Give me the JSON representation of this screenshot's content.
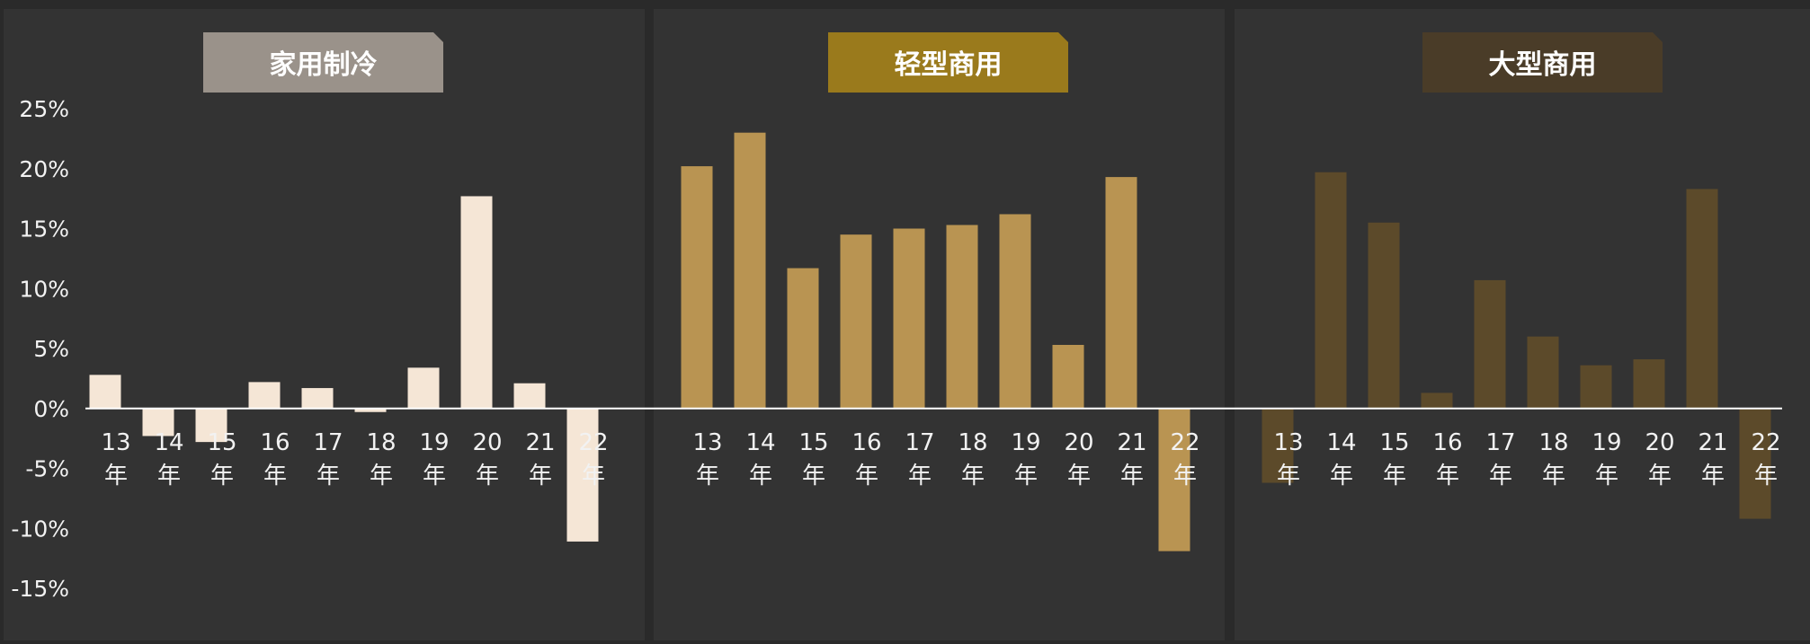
{
  "colors": {
    "background": "#2a2a2a",
    "panel": "#333333",
    "axis_line": "#ffffff",
    "tick_text": "#f2f2f2",
    "title_text": "#ffffff"
  },
  "y_axis": {
    "ticks": [
      "25%",
      "20%",
      "15%",
      "10%",
      "5%",
      "0%",
      "-5%",
      "-10%",
      "-15%"
    ]
  },
  "chart_data": [
    {
      "type": "bar",
      "title": "家用制冷",
      "title_bg": "#9a928a",
      "bar_color": "#f5e6d6",
      "categories": [
        "13年",
        "14年",
        "15年",
        "16年",
        "17年",
        "18年",
        "19年",
        "20年",
        "21年",
        "22年"
      ],
      "values": [
        2.8,
        -2.3,
        -2.8,
        2.2,
        1.7,
        -0.3,
        3.4,
        17.7,
        2.1,
        -11.1
      ],
      "ylim": [
        -15,
        25
      ],
      "grid": false
    },
    {
      "type": "bar",
      "title": "轻型商用",
      "title_bg": "#9a7a1c",
      "bar_color": "#b99452",
      "categories": [
        "13年",
        "14年",
        "15年",
        "16年",
        "17年",
        "18年",
        "19年",
        "20年",
        "21年",
        "22年"
      ],
      "values": [
        20.2,
        23.0,
        11.7,
        14.5,
        15.0,
        15.3,
        16.2,
        5.3,
        19.3,
        -11.9
      ],
      "ylim": [
        -15,
        25
      ],
      "grid": false
    },
    {
      "type": "bar",
      "title": "大型商用",
      "title_bg": "#4a3c28",
      "bar_color": "#5c4a2a",
      "categories": [
        "13年",
        "14年",
        "15年",
        "16年",
        "17年",
        "18年",
        "19年",
        "20年",
        "21年",
        "22年"
      ],
      "values": [
        -6.2,
        19.7,
        15.5,
        1.3,
        10.7,
        6.0,
        3.6,
        4.1,
        18.3,
        -9.2
      ],
      "ylim": [
        -15,
        25
      ],
      "grid": false
    }
  ]
}
